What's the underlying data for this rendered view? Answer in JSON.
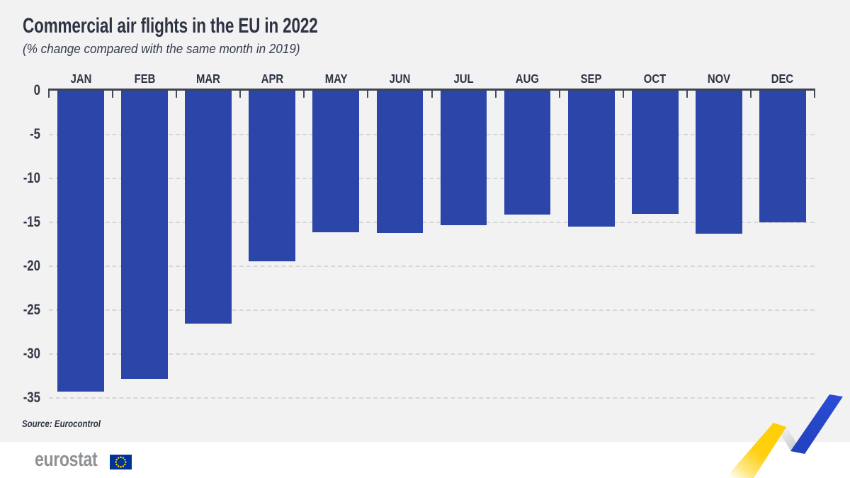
{
  "header": {
    "title": "Commercial air flights in the EU in 2022",
    "subtitle": "(% change compared with the same month in 2019)"
  },
  "source_note": "Source: Eurocontrol",
  "footer": {
    "logo_text": "eurostat"
  },
  "icons": {
    "eu_flag": "eu-flag-icon",
    "trend_ribbon": "zigzag-trend-ribbon-graphic"
  },
  "colors": {
    "bar_blue": "#2b45a8",
    "chart_background": "#f2f2f2",
    "footer_background": "#ffffff",
    "text_dark_navy": "#2d3343",
    "gridline_gray": "#d6d6d6",
    "axis_dark": "#3f4450",
    "logo_gray": "#8e9193",
    "flag_blue": "#003399",
    "star_yellow": "#ffcc00",
    "ribbon_yellow": "#ffcf00",
    "ribbon_blue": "#2343c4"
  },
  "chart_data": {
    "type": "bar",
    "title": "Commercial air flights in the EU in 2022",
    "subtitle": "(% change compared with the same month in 2019)",
    "source": "Source: Eurocontrol",
    "categories": [
      "JAN",
      "FEB",
      "MAR",
      "APR",
      "MAY",
      "JUN",
      "JUL",
      "AUG",
      "SEP",
      "OCT",
      "NOV",
      "DEC"
    ],
    "values": [
      -34.3,
      -32.8,
      -26.5,
      -19.4,
      -16.1,
      -16.2,
      -15.3,
      -14.1,
      -15.5,
      -14.0,
      -16.3,
      -15.0
    ],
    "xlabel": "",
    "ylabel": "% change vs same month 2019",
    "ylim": [
      -35,
      0
    ],
    "yticks": [
      0,
      -5,
      -10,
      -15,
      -20,
      -25,
      -30,
      -35
    ],
    "x_axis_position": "top",
    "grid": "horizontal-dashed",
    "legend": "none",
    "bar_color": "#2b45a8"
  }
}
